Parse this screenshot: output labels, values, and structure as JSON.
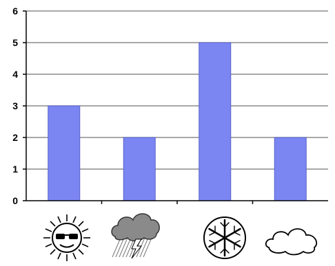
{
  "chart_data": {
    "type": "bar",
    "categories": [
      "sunny",
      "stormy",
      "snowy",
      "cloudy"
    ],
    "values": [
      3,
      2,
      5,
      2
    ],
    "y_ticks": [
      "0",
      "1",
      "2",
      "3",
      "4",
      "5",
      "6"
    ],
    "ylim": [
      0,
      6
    ],
    "grid": true,
    "legend": "none"
  },
  "colors": {
    "bar": "#7b86f2",
    "bar_edge": "#5a63c8",
    "grid": "#8c8c8c",
    "axis": "#000000"
  },
  "icons": [
    "sun-with-sunglasses-icon",
    "storm-cloud-icon",
    "snowflake-icon",
    "cloud-icon"
  ]
}
